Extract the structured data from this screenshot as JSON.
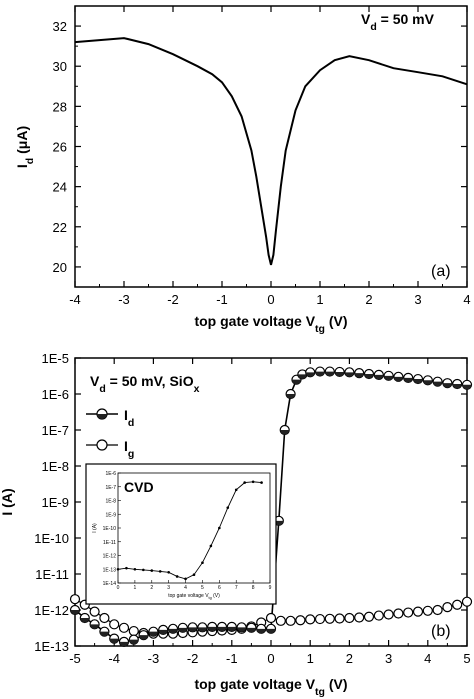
{
  "chart_data": [
    {
      "type": "line",
      "panel_label": "(a)",
      "annotation": "V_d = 50 mV",
      "xlabel": "top gate voltage V_tg (V)",
      "ylabel": "I_d (μA)",
      "xlim": [
        -4,
        4
      ],
      "ylim": [
        19,
        33
      ],
      "x_ticks": [
        -4,
        -3,
        -2,
        -1,
        0,
        1,
        2,
        3,
        4
      ],
      "y_ticks": [
        20,
        22,
        24,
        26,
        28,
        30,
        32
      ],
      "series": [
        {
          "x": [
            -4.0,
            -3.5,
            -3.0,
            -2.5,
            -2.0,
            -1.5,
            -1.2,
            -1.0,
            -0.8,
            -0.6,
            -0.4,
            -0.3,
            -0.2,
            -0.1,
            -0.05,
            0.0,
            0.05,
            0.1,
            0.2,
            0.3,
            0.5,
            0.7,
            1.0,
            1.3,
            1.6,
            2.0,
            2.5,
            3.0,
            3.5,
            4.0
          ],
          "y": [
            31.2,
            31.3,
            31.4,
            31.1,
            30.6,
            30.0,
            29.6,
            29.2,
            28.5,
            27.5,
            25.8,
            24.5,
            23.0,
            21.5,
            20.6,
            20.1,
            20.6,
            21.8,
            24.0,
            25.8,
            27.8,
            29.0,
            29.8,
            30.3,
            30.5,
            30.3,
            29.9,
            29.7,
            29.5,
            29.1
          ]
        }
      ]
    },
    {
      "type": "line",
      "panel_label": "(b)",
      "annotation": "V_d = 50 mV, SiO_x",
      "xlabel": "top gate voltage V_tg (V)",
      "ylabel": "I (A)",
      "xlim": [
        -5,
        5
      ],
      "ylim": [
        1e-13,
        1e-05
      ],
      "scale": "log",
      "x_ticks": [
        -5,
        -4,
        -3,
        -2,
        -1,
        0,
        1,
        2,
        3,
        4,
        5
      ],
      "y_ticks": [
        "1E-13",
        "1E-12",
        "1E-11",
        "1E-10",
        "1E-9",
        "1E-8",
        "1E-7",
        "1E-6",
        "1E-5"
      ],
      "series": [
        {
          "name": "I_d",
          "marker": "half-filled circle",
          "x": [
            -5.0,
            -4.75,
            -4.5,
            -4.25,
            -4.0,
            -3.75,
            -3.5,
            -3.25,
            -3.0,
            -2.75,
            -2.5,
            -2.25,
            -2.0,
            -1.75,
            -1.5,
            -1.25,
            -1.0,
            -0.75,
            -0.5,
            -0.25,
            0.0,
            0.2,
            0.35,
            0.5,
            0.65,
            0.8,
            1.0,
            1.25,
            1.5,
            1.75,
            2.0,
            2.25,
            2.5,
            2.75,
            3.0,
            3.25,
            3.5,
            3.75,
            4.0,
            4.25,
            4.5,
            4.75,
            5.0
          ],
          "y": [
            1e-12,
            6e-13,
            4e-13,
            2.5e-13,
            1.6e-13,
            1.3e-13,
            1.5e-13,
            2e-13,
            2.5e-13,
            2.8e-13,
            3e-13,
            3.2e-13,
            3.3e-13,
            3.3e-13,
            3.4e-13,
            3.4e-13,
            3.4e-13,
            3.3e-13,
            3.2e-13,
            3e-13,
            3e-13,
            3e-10,
            1e-07,
            1e-06,
            2.5e-06,
            3.5e-06,
            4e-06,
            4.2e-06,
            4.2e-06,
            4.1e-06,
            4e-06,
            3.8e-06,
            3.6e-06,
            3.4e-06,
            3.2e-06,
            3e-06,
            2.8e-06,
            2.6e-06,
            2.4e-06,
            2.2e-06,
            2e-06,
            1.9e-06,
            1.8e-06
          ]
        },
        {
          "name": "I_g",
          "marker": "open circle",
          "x": [
            -5.0,
            -4.75,
            -4.5,
            -4.25,
            -4.0,
            -3.75,
            -3.5,
            -3.25,
            -3.0,
            -2.75,
            -2.5,
            -2.25,
            -2.0,
            -1.75,
            -1.5,
            -1.25,
            -1.0,
            -0.75,
            -0.5,
            -0.25,
            0.0,
            0.25,
            0.5,
            0.75,
            1.0,
            1.25,
            1.5,
            1.75,
            2.0,
            2.25,
            2.5,
            2.75,
            3.0,
            3.25,
            3.5,
            3.75,
            4.0,
            4.25,
            4.5,
            4.75,
            5.0
          ],
          "y": [
            2e-12,
            1.4e-12,
            9e-13,
            6e-13,
            4e-13,
            3.2e-13,
            2.6e-13,
            2.3e-13,
            2.2e-13,
            2.2e-13,
            2.2e-13,
            2.3e-13,
            2.4e-13,
            2.5e-13,
            2.6e-13,
            2.7e-13,
            2.8e-13,
            3e-13,
            3.5e-13,
            4.5e-13,
            6e-13,
            5e-13,
            5e-13,
            5.2e-13,
            5.5e-13,
            5.6e-13,
            5.7e-13,
            5.8e-13,
            6e-13,
            6.2e-13,
            6.5e-13,
            7e-13,
            7.5e-13,
            8e-13,
            8.5e-13,
            9e-13,
            9.5e-13,
            1e-12,
            1.2e-12,
            1.4e-12,
            1.7e-12
          ]
        }
      ],
      "inset": {
        "label": "CVD",
        "xlabel": "top gate voltage V_tg (V)",
        "ylabel": "I (A)",
        "xlim": [
          0,
          9
        ],
        "ylim": [
          1e-14,
          1e-06
        ],
        "scale": "log",
        "x_ticks": [
          0,
          1,
          2,
          3,
          4,
          5,
          6,
          7,
          8,
          9
        ],
        "y_ticks": [
          "1E-14",
          "1E-13",
          "1E-12",
          "1E-11",
          "1E-10",
          "1E-9",
          "1E-8",
          "1E-7",
          "1E-6"
        ],
        "series": [
          {
            "x": [
              0.0,
              0.5,
              1.0,
              1.5,
              2.0,
              2.5,
              3.0,
              3.5,
              4.0,
              4.5,
              5.0,
              5.5,
              6.0,
              6.5,
              7.0,
              7.5,
              8.0,
              8.5
            ],
            "y": [
              1e-13,
              1.2e-13,
              1e-13,
              9e-14,
              8e-14,
              7e-14,
              6e-14,
              3e-14,
              2e-14,
              4e-14,
              3e-13,
              5e-12,
              1e-10,
              3e-09,
              6e-08,
              2e-07,
              2.3e-07,
              2e-07
            ]
          }
        ]
      }
    }
  ]
}
